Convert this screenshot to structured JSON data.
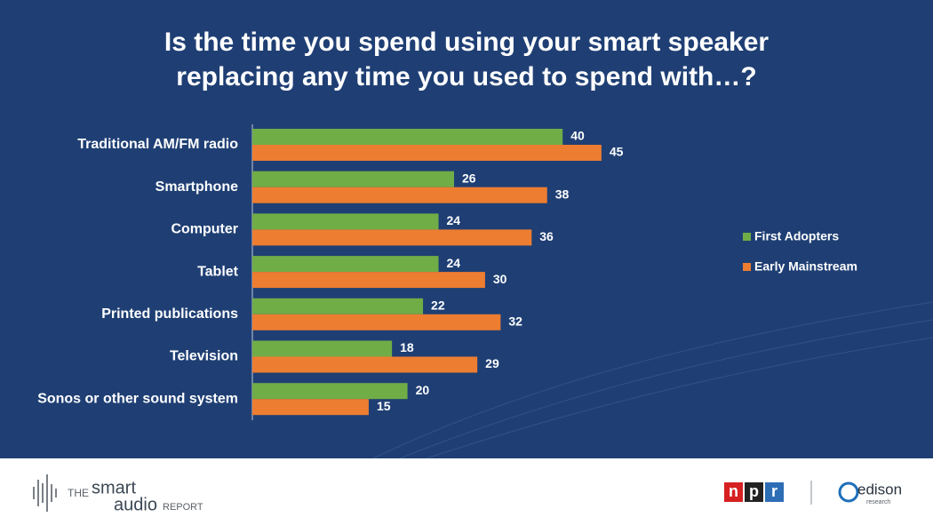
{
  "chart_data": {
    "type": "barh",
    "title_lines": [
      "Is the time you spend using your smart speaker",
      "replacing any time you used to spend with…?"
    ],
    "categories": [
      "Traditional AM/FM radio",
      "Smartphone",
      "Computer",
      "Tablet",
      "Printed publications",
      "Television",
      "Sonos or other sound system"
    ],
    "series": [
      {
        "name": "First Adopters",
        "color": "#70ad47",
        "values": [
          40,
          26,
          24,
          24,
          22,
          18,
          20
        ]
      },
      {
        "name": "Early Mainstream",
        "color": "#ed7d31",
        "values": [
          45,
          38,
          36,
          30,
          32,
          29,
          15
        ]
      }
    ],
    "legend": "right"
  },
  "footer": {
    "report_logo": [
      "THE",
      "smart",
      "audio",
      "REPORT"
    ],
    "npr_letters": [
      "n",
      "p",
      "r"
    ],
    "edison_logo": [
      "edison",
      "research"
    ]
  }
}
